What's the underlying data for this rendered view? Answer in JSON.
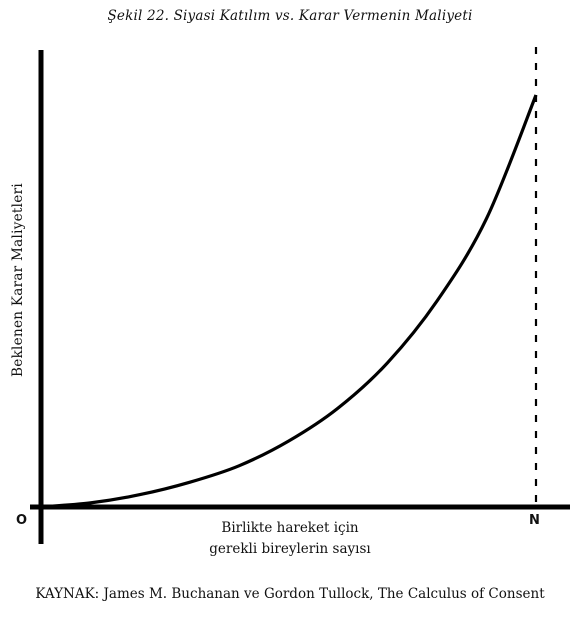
{
  "title": "Şekil 22. Siyasi Katılım vs. Karar Vermenin Maliyeti",
  "source": "KAYNAK: James M. Buchanan ve Gordon Tullock, The Calculus of Consent",
  "chart_data": {
    "type": "line",
    "title": "Şekil 22. Siyasi Katılım vs. Karar Vermenin Maliyeti",
    "ylabel": "Beklenen Karar Maliyetleri",
    "xlabel_lines": [
      "Birlikte hareket için",
      "gerekli bireylerin sayısı"
    ],
    "x_ticks": [
      "O",
      "N"
    ],
    "series": [
      {
        "curve": "convex, increasing",
        "x": [
          0,
          0.1,
          0.2,
          0.3,
          0.4,
          0.5,
          0.6,
          0.7,
          0.8,
          0.9,
          1.0
        ],
        "y": [
          0,
          0.01,
          0.03,
          0.06,
          0.1,
          0.16,
          0.24,
          0.35,
          0.5,
          0.7,
          1.0
        ]
      }
    ],
    "reference_lines": [
      {
        "x": "N",
        "style": "dashed",
        "orientation": "vertical"
      }
    ],
    "grid": false,
    "legend": "none"
  }
}
